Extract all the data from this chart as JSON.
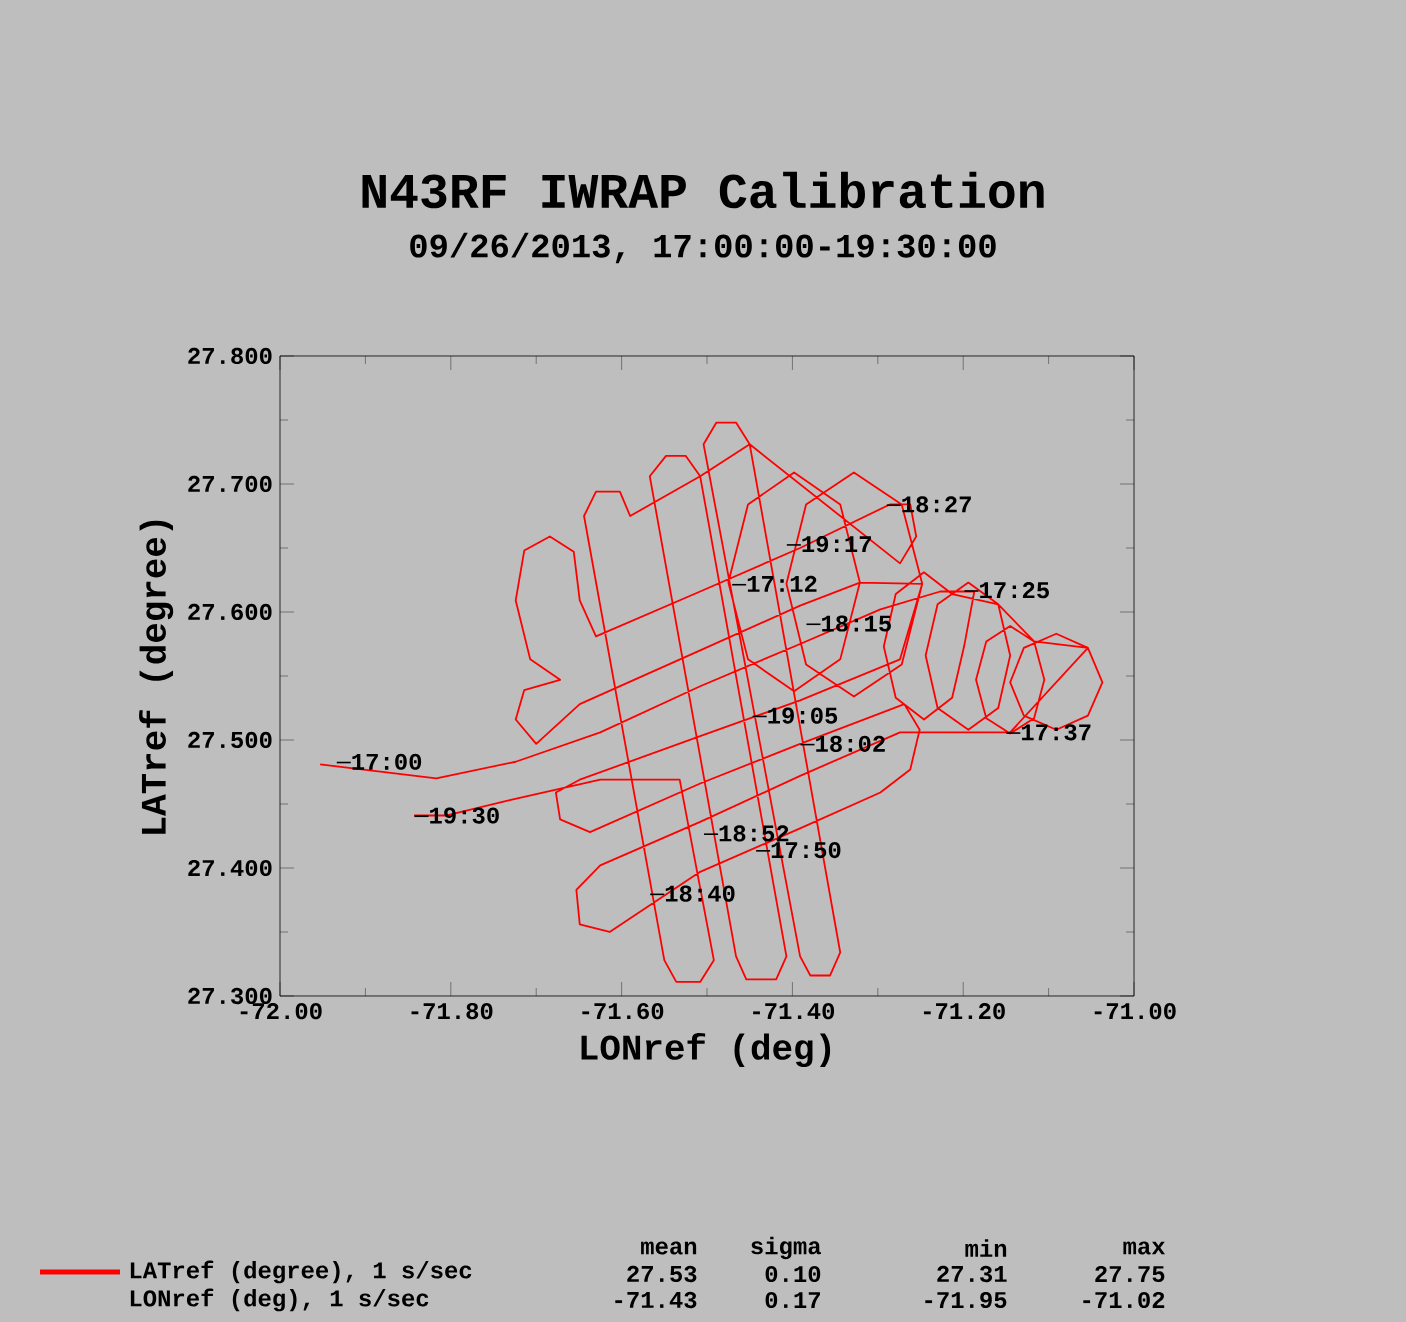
{
  "chart_data": {
    "type": "line",
    "title": "N43RF IWRAP Calibration",
    "subtitle": "09/26/2013, 17:00:00-19:30:00",
    "xlabel": "LONref (deg)",
    "ylabel": "LATref (degree)",
    "xlim": [
      -72.0,
      -71.0
    ],
    "ylim": [
      27.3,
      27.8
    ],
    "xticks": [
      {
        "value": -72.0,
        "label": "-72.00"
      },
      {
        "value": -71.8,
        "label": "-71.80"
      },
      {
        "value": -71.6,
        "label": "-71.60"
      },
      {
        "value": -71.4,
        "label": "-71.40"
      },
      {
        "value": -71.2,
        "label": "-71.20"
      },
      {
        "value": -71.0,
        "label": "-71.00"
      }
    ],
    "yticks": [
      {
        "value": 27.3,
        "label": "27.300"
      },
      {
        "value": 27.4,
        "label": "27.400"
      },
      {
        "value": 27.5,
        "label": "27.500"
      },
      {
        "value": 27.6,
        "label": "27.600"
      },
      {
        "value": 27.7,
        "label": "27.700"
      },
      {
        "value": 27.8,
        "label": "27.800"
      }
    ],
    "legend": "bottom",
    "series": [
      {
        "name": "LATref (degree), 1 s/sec",
        "color": "#ff0000",
        "x": [
          -71.953,
          -71.817,
          -71.724,
          -71.625,
          -71.508,
          -71.391,
          -71.297,
          -71.227,
          -71.187,
          -71.199,
          -71.213,
          -71.246,
          -71.279,
          -71.293,
          -71.279,
          -71.246,
          -71.213,
          -71.159,
          -71.145,
          -71.159,
          -71.194,
          -71.23,
          -71.244,
          -71.23,
          -71.194,
          -71.159,
          -71.117,
          -71.105,
          -71.117,
          -71.145,
          -71.173,
          -71.185,
          -71.173,
          -71.145,
          -71.117,
          -71.054,
          -71.037,
          -71.054,
          -71.091,
          -71.129,
          -71.145,
          -71.129,
          -71.091,
          -71.054,
          -71.145,
          -71.204,
          -71.274,
          -71.391,
          -71.508,
          -71.625,
          -71.653,
          -71.649,
          -71.614,
          -71.508,
          -71.391,
          -71.297,
          -71.262,
          -71.251,
          -71.269,
          -71.391,
          -71.508,
          -71.637,
          -71.672,
          -71.677,
          -71.649,
          -71.508,
          -71.391,
          -71.274,
          -71.248,
          -71.272,
          -71.328,
          -71.384,
          -71.407,
          -71.384,
          -71.328,
          -71.272,
          -71.248,
          -71.321,
          -71.344,
          -71.398,
          -71.452,
          -71.475,
          -71.452,
          -71.398,
          -71.344,
          -71.321,
          -71.391,
          -71.508,
          -71.649,
          -71.7,
          -71.724,
          -71.714,
          -71.672,
          -71.707,
          -71.724,
          -71.714,
          -71.684,
          -71.656,
          -71.649,
          -71.63,
          -71.508,
          -71.391,
          -71.286,
          -71.262,
          -71.255,
          -71.274,
          -71.45,
          -71.466,
          -71.489,
          -71.504,
          -71.391,
          -71.379,
          -71.356,
          -71.344,
          -71.45,
          -71.508,
          -71.525,
          -71.548,
          -71.567,
          -71.466,
          -71.454,
          -71.419,
          -71.407,
          -71.508,
          -71.59,
          -71.602,
          -71.63,
          -71.644,
          -71.55,
          -71.536,
          -71.508,
          -71.492,
          -71.532,
          -71.625,
          -71.731,
          -71.806,
          -71.843
        ],
        "values": [
          27.481,
          27.47,
          27.483,
          27.506,
          27.542,
          27.575,
          27.602,
          27.616,
          27.616,
          27.573,
          27.533,
          27.516,
          27.533,
          27.573,
          27.614,
          27.631,
          27.614,
          27.606,
          27.566,
          27.525,
          27.508,
          27.525,
          27.566,
          27.606,
          27.623,
          27.606,
          27.577,
          27.547,
          27.517,
          27.505,
          27.517,
          27.547,
          27.577,
          27.589,
          27.577,
          27.572,
          27.545,
          27.519,
          27.508,
          27.519,
          27.545,
          27.572,
          27.583,
          27.572,
          27.506,
          27.506,
          27.506,
          27.472,
          27.436,
          27.402,
          27.383,
          27.356,
          27.35,
          27.397,
          27.431,
          27.459,
          27.477,
          27.508,
          27.528,
          27.497,
          27.466,
          27.428,
          27.438,
          27.459,
          27.469,
          27.503,
          27.531,
          27.563,
          27.622,
          27.559,
          27.534,
          27.559,
          27.622,
          27.684,
          27.709,
          27.684,
          27.622,
          27.623,
          27.563,
          27.538,
          27.563,
          27.623,
          27.684,
          27.709,
          27.684,
          27.623,
          27.605,
          27.57,
          27.528,
          27.497,
          27.516,
          27.539,
          27.547,
          27.563,
          27.609,
          27.648,
          27.659,
          27.647,
          27.609,
          27.581,
          27.616,
          27.65,
          27.684,
          27.684,
          27.659,
          27.638,
          27.731,
          27.748,
          27.748,
          27.731,
          27.331,
          27.316,
          27.316,
          27.334,
          27.731,
          27.706,
          27.722,
          27.722,
          27.706,
          27.331,
          27.313,
          27.313,
          27.331,
          27.706,
          27.675,
          27.694,
          27.694,
          27.675,
          27.328,
          27.311,
          27.311,
          27.328,
          27.469,
          27.469,
          27.453,
          27.441,
          27.441
        ]
      }
    ],
    "annotations": [
      {
        "text": "17:00",
        "x": -71.934,
        "y": 27.483
      },
      {
        "text": "17:12",
        "x": -71.471,
        "y": 27.622
      },
      {
        "text": "17:25",
        "x": -71.199,
        "y": 27.617
      },
      {
        "text": "17:37",
        "x": -71.15,
        "y": 27.506
      },
      {
        "text": "17:50",
        "x": -71.443,
        "y": 27.414
      },
      {
        "text": "18:02",
        "x": -71.391,
        "y": 27.497
      },
      {
        "text": "18:15",
        "x": -71.384,
        "y": 27.591
      },
      {
        "text": "18:27",
        "x": -71.29,
        "y": 27.684
      },
      {
        "text": "18:40",
        "x": -71.567,
        "y": 27.38
      },
      {
        "text": "18:52",
        "x": -71.504,
        "y": 27.427
      },
      {
        "text": "19:05",
        "x": -71.447,
        "y": 27.519
      },
      {
        "text": "19:17",
        "x": -71.407,
        "y": 27.653
      },
      {
        "text": "19:30",
        "x": -71.843,
        "y": 27.441
      },
      "mean",
      "sigma",
      "min",
      "max",
      "27.53",
      "0.10",
      "27.31",
      "27.75",
      "LONref (deg), 1 s/sec",
      "-71.43",
      "0.17",
      "-71.95",
      "-71.02"
    ]
  }
}
